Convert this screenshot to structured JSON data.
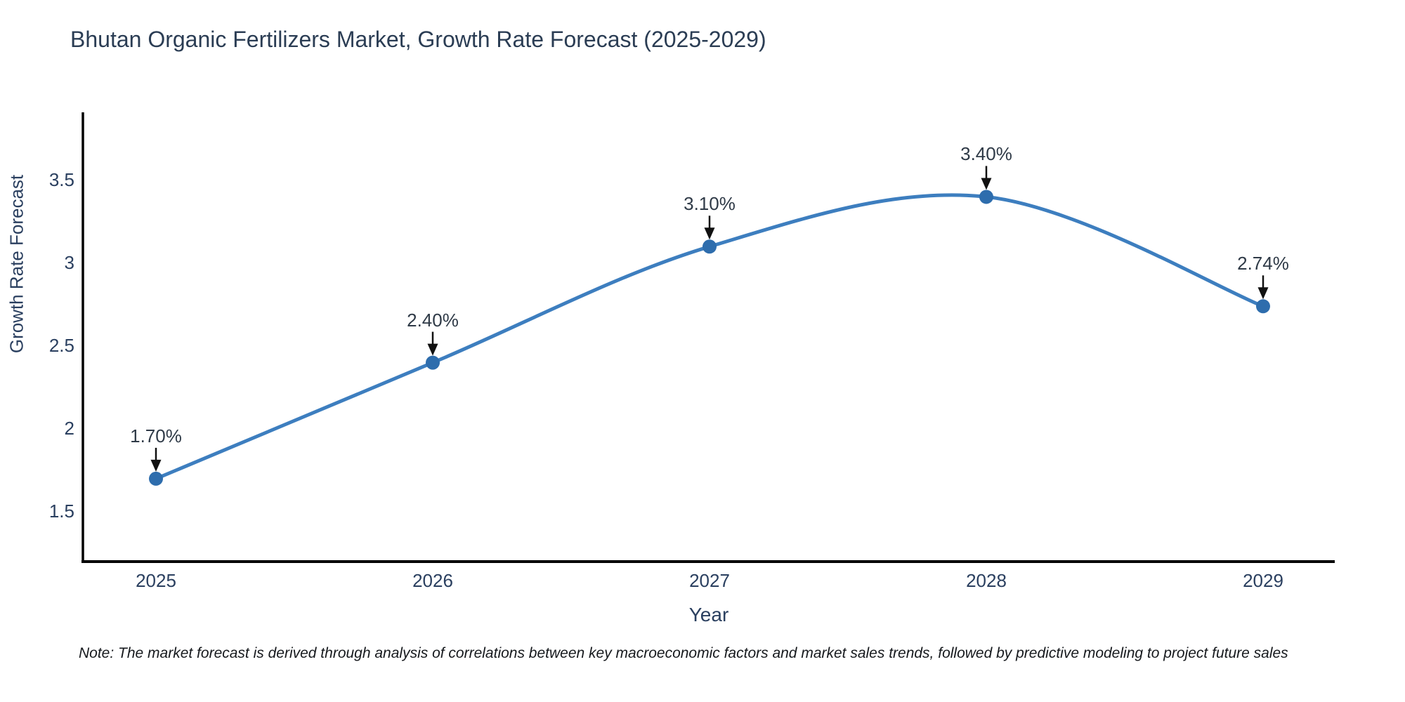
{
  "title": "Bhutan Organic Fertilizers Market, Growth Rate Forecast (2025-2029)",
  "note": "Note: The market forecast is derived through analysis of correlations between key macroeconomic factors and market sales trends, followed by predictive modeling to project future sales",
  "chart_data": {
    "type": "line",
    "title": "Bhutan Organic Fertilizers Market, Growth Rate Forecast (2025-2029)",
    "xlabel": "Year",
    "ylabel": "Growth Rate Forecast",
    "categories": [
      "2025",
      "2026",
      "2027",
      "2028",
      "2029"
    ],
    "values": [
      1.7,
      2.4,
      3.1,
      3.4,
      2.74
    ],
    "point_labels": [
      "1.70%",
      "2.40%",
      "3.10%",
      "3.40%",
      "2.74%"
    ],
    "yticks": [
      1.5,
      2,
      2.5,
      3,
      3.5
    ],
    "ytick_labels": [
      "1.5",
      "2",
      "2.5",
      "3",
      "3.5"
    ],
    "ylim": [
      1.2,
      3.91
    ],
    "grid": false,
    "legend": "none",
    "line_shape": "spline",
    "colors": {
      "line": "#3d7ebf",
      "marker": "#2e6dad",
      "arrow": "#111111",
      "axis": "#000000",
      "text": "#2a3f5f",
      "annotation_text": "#2f3a47",
      "note_text": "#16191d"
    }
  }
}
